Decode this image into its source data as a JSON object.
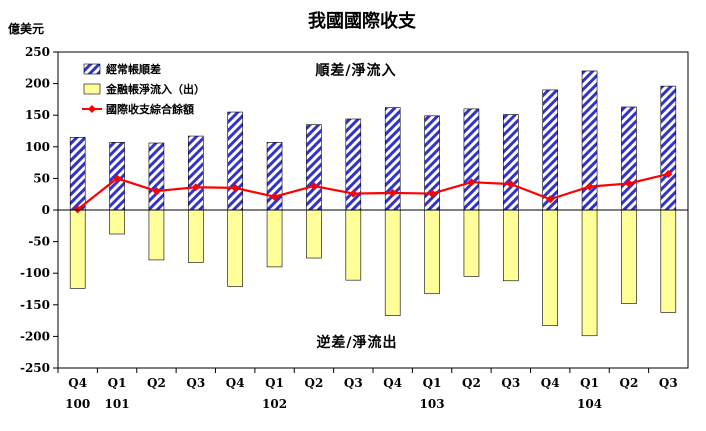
{
  "chart_data": {
    "type": "bar",
    "title": "我國國際收支",
    "ylabel": "億美元",
    "ylim": [
      -250,
      250
    ],
    "yticks": [
      250,
      200,
      150,
      100,
      50,
      0,
      -50,
      -100,
      -150,
      -200,
      -250
    ],
    "grid": false,
    "legend_position": "top-left",
    "categories": [
      "Q4",
      "Q1",
      "Q2",
      "Q3",
      "Q4",
      "Q1",
      "Q2",
      "Q3",
      "Q4",
      "Q1",
      "Q2",
      "Q3",
      "Q4",
      "Q1",
      "Q2",
      "Q3"
    ],
    "year_labels": [
      "100",
      "101",
      "",
      "",
      "",
      "102",
      "",
      "",
      "",
      "103",
      "",
      "",
      "",
      "104",
      "",
      ""
    ],
    "series": [
      {
        "name": "經常帳順差",
        "type": "bar",
        "values": [
          115,
          107,
          106,
          117,
          155,
          107,
          135,
          144,
          162,
          149,
          160,
          151,
          190,
          220,
          163,
          196
        ]
      },
      {
        "name": "金融帳淨流入（出）",
        "type": "bar",
        "values": [
          -124,
          -38,
          -79,
          -83,
          -121,
          -90,
          -76,
          -111,
          -167,
          -132,
          -105,
          -112,
          -183,
          -199,
          -148,
          -162
        ]
      },
      {
        "name": "國際收支綜合餘額",
        "type": "line",
        "values": [
          1,
          50,
          30,
          36,
          35,
          21,
          38,
          26,
          27,
          26,
          44,
          41,
          17,
          37,
          42,
          57
        ]
      }
    ],
    "annotations": {
      "surplus": "順差/淨流入",
      "deficit": "逆差/淨流出"
    },
    "colors": {
      "current_account": "#3333cc",
      "financial_account": "#ffff99",
      "balance_line": "#ff0000",
      "frame": "#000000"
    }
  }
}
